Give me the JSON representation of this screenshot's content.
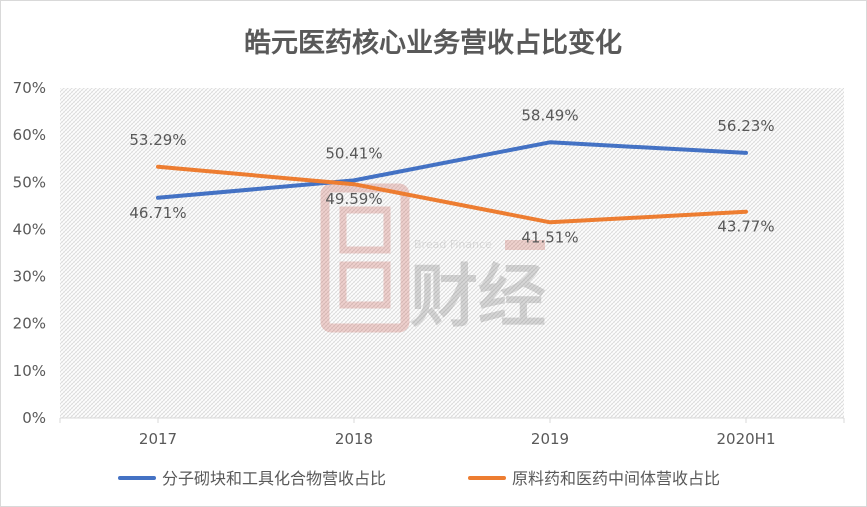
{
  "chart_data": {
    "type": "line",
    "title": "皓元医药核心业务营收占比变化",
    "categories": [
      "2017",
      "2018",
      "2019",
      "2020H1"
    ],
    "ylim": [
      0,
      70
    ],
    "yticks": [
      "0%",
      "10%",
      "20%",
      "30%",
      "40%",
      "50%",
      "60%",
      "70%"
    ],
    "grid": false,
    "legend_position": "bottom",
    "series": [
      {
        "name": "分子砌块和工具化合物营收占比",
        "values": [
          46.71,
          50.41,
          58.49,
          56.23
        ],
        "labels": [
          "46.71%",
          "50.41%",
          "58.49%",
          "56.23%"
        ],
        "color": "#4472c4"
      },
      {
        "name": "原料药和医药中间体营收占比",
        "values": [
          53.29,
          49.59,
          41.51,
          43.77
        ],
        "labels": [
          "53.29%",
          "49.59%",
          "41.51%",
          "43.77%"
        ],
        "color": "#ed7d31"
      }
    ]
  },
  "watermark": {
    "brand_text": "财经",
    "english_text": "Bread Finance",
    "color": "#c0392b"
  }
}
